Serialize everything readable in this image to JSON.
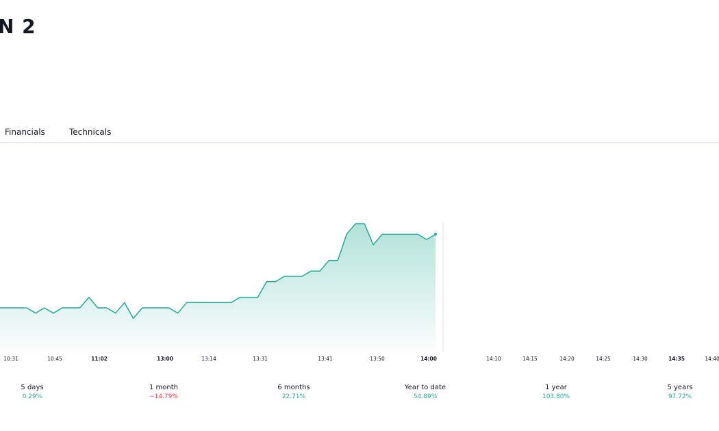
{
  "header": {
    "title": "N 2"
  },
  "tabs": [
    {
      "label": "Financials"
    },
    {
      "label": "Technicals"
    }
  ],
  "colors": {
    "line": "#22ab94",
    "positive": "#22ab94",
    "negative": "#f23645"
  },
  "chart_data": {
    "type": "area",
    "x_labels": [
      {
        "label": "10:31",
        "bold": false
      },
      {
        "label": "10:45",
        "bold": false
      },
      {
        "label": "11:02",
        "bold": true
      },
      {
        "label": "13:00",
        "bold": true
      },
      {
        "label": "13:14",
        "bold": false
      },
      {
        "label": "13:31",
        "bold": false
      },
      {
        "label": "13:41",
        "bold": false
      },
      {
        "label": "13:50",
        "bold": false
      },
      {
        "label": "14:00",
        "bold": true
      },
      {
        "label": "14:10",
        "bold": false
      },
      {
        "label": "14:15",
        "bold": false
      },
      {
        "label": "14:20",
        "bold": false
      },
      {
        "label": "14:25",
        "bold": false
      },
      {
        "label": "14:30",
        "bold": false
      },
      {
        "label": "14:35",
        "bold": true
      },
      {
        "label": "14:40",
        "bold": false
      }
    ],
    "values": [
      0,
      0,
      0,
      0,
      -1,
      0,
      -1,
      0,
      0,
      0,
      2,
      0,
      0,
      -1,
      1,
      -2,
      0,
      0,
      0,
      0,
      -1,
      1,
      1,
      1,
      1,
      1,
      1,
      2,
      2,
      2,
      5,
      5,
      6,
      6,
      6,
      7,
      7,
      9,
      9,
      14,
      16,
      16,
      12,
      14,
      14,
      14,
      14,
      14,
      13,
      14
    ]
  },
  "periods": [
    {
      "label": "5 days",
      "value": "0.29%",
      "trend": "up"
    },
    {
      "label": "1 month",
      "value": "−14.79%",
      "trend": "down"
    },
    {
      "label": "6 months",
      "value": "22.71%",
      "trend": "up"
    },
    {
      "label": "Year to date",
      "value": "54.89%",
      "trend": "up"
    },
    {
      "label": "1 year",
      "value": "103.80%",
      "trend": "up"
    },
    {
      "label": "5 years",
      "value": "97.72%",
      "trend": "up"
    }
  ]
}
